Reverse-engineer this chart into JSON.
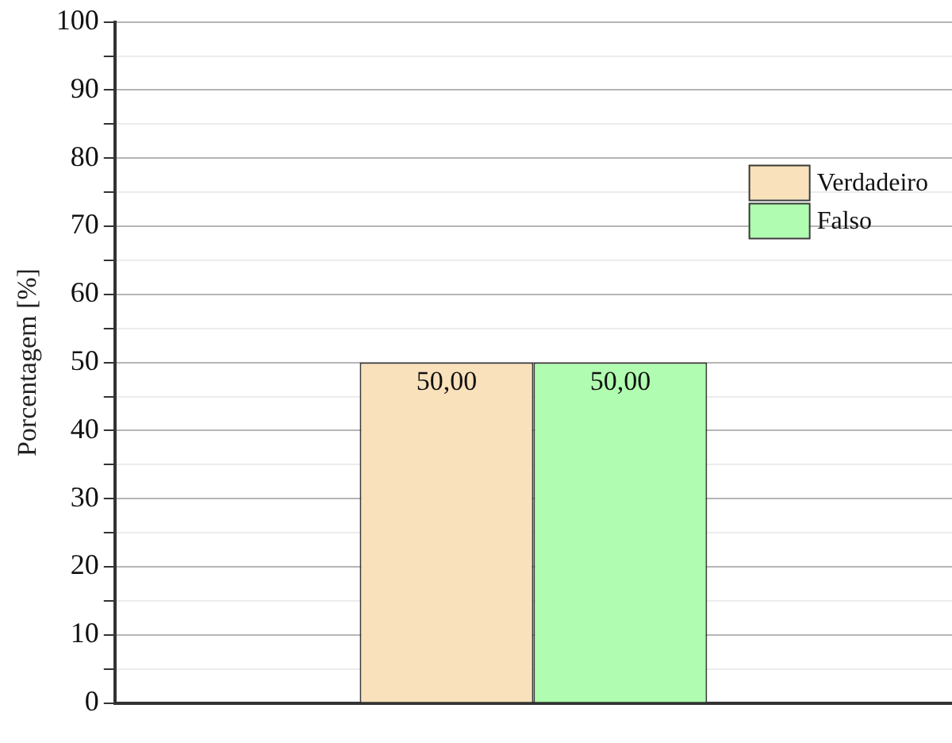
{
  "chart_data": {
    "type": "bar",
    "ylabel": "Porcentagem [%]",
    "categories": [
      null
    ],
    "series": [
      {
        "name": "Verdadeiro",
        "color": "#f8e1bb",
        "values": [
          50
        ],
        "value_labels": [
          "50,00"
        ]
      },
      {
        "name": "Falso",
        "color": "#b0fcb0",
        "values": [
          50
        ],
        "value_labels": [
          "50,00"
        ]
      }
    ],
    "ylim": [
      0,
      100
    ],
    "yticks": [
      0,
      {
        "value": 5,
        "label": null
      },
      10,
      {
        "value": 15,
        "label": null
      },
      20,
      {
        "value": 25,
        "label": null
      },
      30,
      {
        "value": 35,
        "label": null
      },
      40,
      {
        "value": 45,
        "label": null
      },
      50,
      {
        "value": 55,
        "label": null
      },
      60,
      {
        "value": 65,
        "label": null
      },
      70,
      {
        "value": 75,
        "label": null
      },
      80,
      {
        "value": 85,
        "label": null
      },
      90,
      {
        "value": 95,
        "label": null
      },
      100
    ],
    "grid": "y",
    "legend": "top right"
  }
}
